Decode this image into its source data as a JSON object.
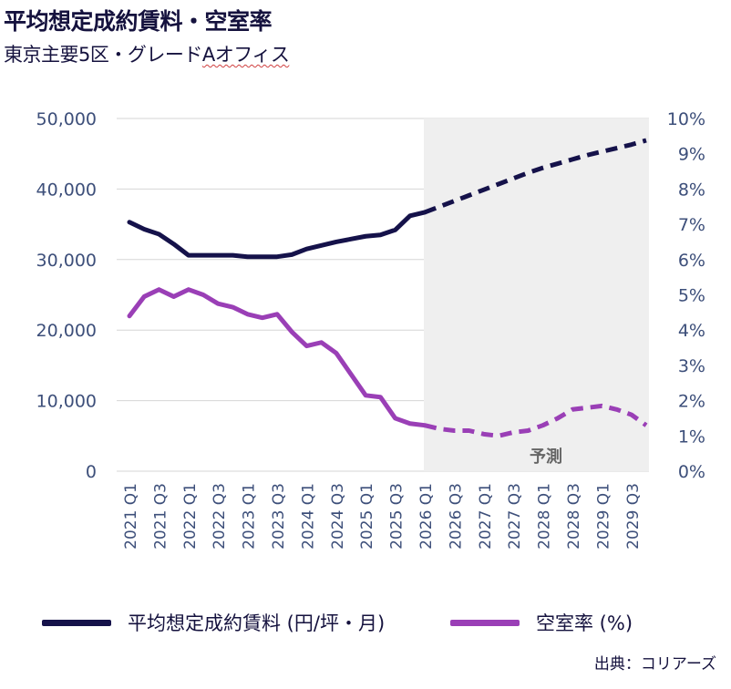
{
  "header": {
    "title": "平均想定成約賃料・空室率",
    "subtitle_main": "東京主要5区・グレード",
    "subtitle_underlined": "Aオフィス"
  },
  "legend": {
    "rent_label": "平均想定成約賃料 (円/坪・月)",
    "vacancy_label": "空室率 (%)"
  },
  "source": "出典：コリアーズ",
  "colors": {
    "rent": "#15124a",
    "vacancy": "#9a3fb6",
    "forecast_bg": "#efefef",
    "grid": "#d6d6d6",
    "axis_text": "#4a5a86",
    "tick_text": "#3d4f7a"
  },
  "chart_data": {
    "type": "line",
    "title": "平均想定成約賃料・空室率",
    "forecast_label": "予測",
    "forecast_start": "2026 Q1",
    "x": [
      "2021 Q1",
      "2021 Q2",
      "2021 Q3",
      "2021 Q4",
      "2022 Q1",
      "2022 Q2",
      "2022 Q3",
      "2022 Q4",
      "2023 Q1",
      "2023 Q2",
      "2023 Q3",
      "2023 Q4",
      "2024 Q1",
      "2024 Q2",
      "2024 Q3",
      "2024 Q4",
      "2025 Q1",
      "2025 Q2",
      "2025 Q3",
      "2025 Q4",
      "2026 Q1",
      "2026 Q2",
      "2026 Q3",
      "2026 Q4",
      "2027 Q1",
      "2027 Q2",
      "2027 Q3",
      "2027 Q4",
      "2028 Q1",
      "2028 Q2",
      "2028 Q3",
      "2028 Q4",
      "2029 Q1",
      "2029 Q2",
      "2029 Q3",
      "2029 Q4"
    ],
    "x_tick_labels": [
      "2021 Q1",
      "2021 Q3",
      "2022 Q1",
      "2022 Q3",
      "2023 Q1",
      "2023 Q3",
      "2024 Q1",
      "2024 Q3",
      "2025 Q1",
      "2025 Q3",
      "2026 Q1",
      "2026 Q3",
      "2027 Q1",
      "2027 Q3",
      "2028 Q1",
      "2028 Q3",
      "2029 Q1",
      "2029 Q3"
    ],
    "left_axis": {
      "min": 0,
      "max": 50000,
      "ticks": [
        "0",
        "10,000",
        "20,000",
        "30,000",
        "40,000",
        "50,000"
      ]
    },
    "right_axis": {
      "min": 0,
      "max": 10,
      "ticks": [
        "0%",
        "1%",
        "2%",
        "3%",
        "4%",
        "5%",
        "6%",
        "7%",
        "8%",
        "9%",
        "10%"
      ]
    },
    "series": [
      {
        "name": "平均想定成約賃料 (円/坪・月)",
        "axis": "left",
        "actual_count": 21,
        "values": [
          35300,
          34300,
          33600,
          32200,
          30600,
          30600,
          30600,
          30600,
          30400,
          30400,
          30400,
          30700,
          31500,
          32000,
          32500,
          32900,
          33300,
          33500,
          34200,
          36200,
          36700,
          37500,
          38300,
          39100,
          39900,
          40700,
          41500,
          42300,
          43000,
          43600,
          44200,
          44800,
          45300,
          45800,
          46300,
          46900
        ]
      },
      {
        "name": "空室率 (%)",
        "axis": "right",
        "actual_count": 21,
        "values": [
          4.4,
          4.95,
          5.15,
          4.95,
          5.15,
          5.0,
          4.75,
          4.65,
          4.45,
          4.35,
          4.45,
          3.95,
          3.55,
          3.65,
          3.35,
          2.75,
          2.15,
          2.1,
          1.5,
          1.35,
          1.3,
          1.2,
          1.15,
          1.15,
          1.05,
          1.0,
          1.1,
          1.15,
          1.3,
          1.5,
          1.75,
          1.8,
          1.85,
          1.75,
          1.6,
          1.3
        ]
      }
    ]
  }
}
